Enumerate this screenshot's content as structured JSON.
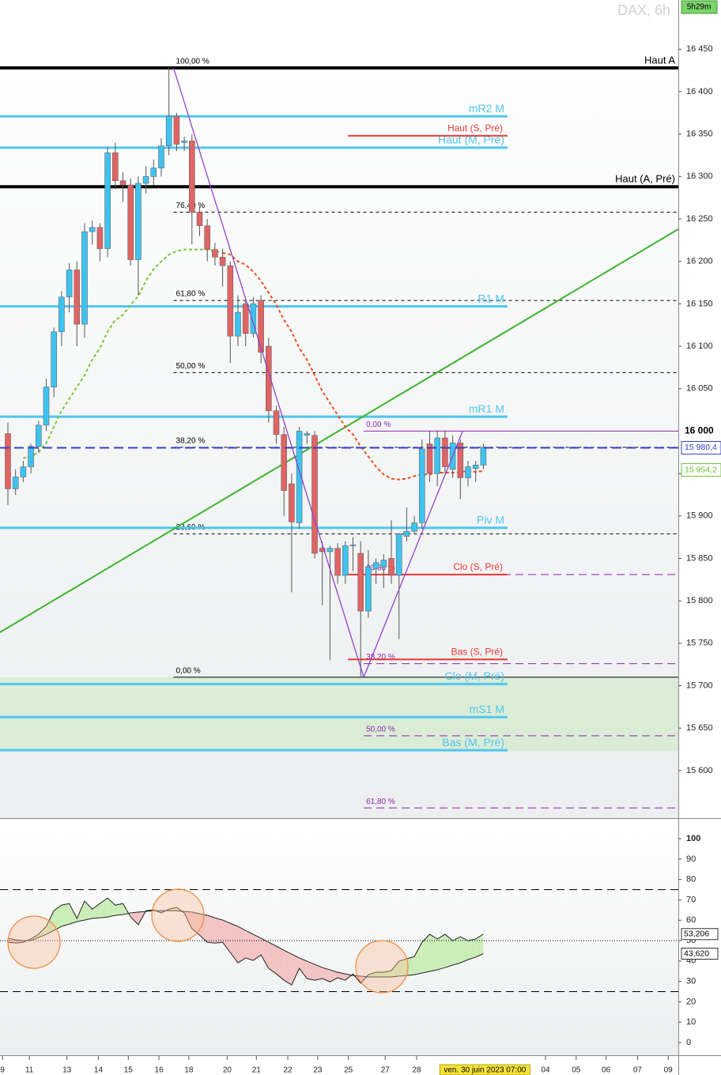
{
  "chart_data": [
    {
      "type": "candlestick",
      "title": "DAX, 6h",
      "countdown": "5h29m",
      "x": [
        0,
        1,
        2,
        3,
        4,
        5,
        6,
        7,
        8,
        9,
        10,
        11,
        12,
        13,
        14,
        15,
        16,
        17,
        18,
        19,
        20,
        21,
        22,
        23,
        24,
        25,
        26,
        27,
        28,
        29,
        30,
        31,
        32,
        33,
        34,
        35,
        36,
        37,
        38,
        39,
        40,
        41,
        42,
        43,
        44,
        45,
        46,
        47,
        48,
        49,
        50,
        51,
        52,
        53,
        54,
        55,
        56,
        57,
        58,
        59,
        60,
        61,
        62
      ],
      "open": [
        15997,
        15932,
        15946,
        15958,
        15982,
        16007,
        16052,
        16117,
        16158,
        16190,
        16126,
        16235,
        16240,
        16215,
        16328,
        16295,
        16290,
        16202,
        16292,
        16300,
        16310,
        16336,
        16371,
        16340,
        16342,
        16258,
        16242,
        16214,
        16205,
        16195,
        16112,
        16150,
        16115,
        16154,
        16100,
        16024,
        15996,
        15938,
        15892,
        15995,
        15995,
        15862,
        15858,
        15862,
        15830,
        15865,
        15856,
        15788,
        15838,
        15840,
        15850,
        15830,
        15876,
        15882,
        15892,
        15985,
        15950,
        15992,
        15955,
        15986,
        15945,
        15956,
        15960
      ],
      "high": [
        16010,
        15955,
        15965,
        15985,
        16012,
        16062,
        16122,
        16165,
        16198,
        16200,
        16245,
        16248,
        16245,
        16335,
        16340,
        16305,
        16298,
        16300,
        16312,
        16320,
        16345,
        16429,
        16375,
        16347,
        16350,
        16265,
        16250,
        16222,
        16215,
        16200,
        16160,
        16155,
        16158,
        16160,
        16110,
        16030,
        16005,
        15950,
        16005,
        16000,
        16000,
        15870,
        15865,
        15868,
        15870,
        15875,
        15870,
        15860,
        15850,
        15855,
        15895,
        15880,
        15910,
        15900,
        15990,
        16000,
        16000,
        16000,
        15995,
        15990,
        15965,
        15965,
        15985
      ],
      "low": [
        15913,
        15925,
        15940,
        15950,
        15975,
        16000,
        16040,
        16100,
        16140,
        16100,
        16110,
        16220,
        16200,
        16205,
        16285,
        16270,
        16195,
        16160,
        16280,
        16290,
        16300,
        16325,
        16330,
        16330,
        16220,
        16230,
        16200,
        16195,
        16170,
        16080,
        16100,
        16100,
        16110,
        16080,
        16010,
        15985,
        15900,
        15810,
        15885,
        15985,
        15850,
        15795,
        15730,
        15820,
        15820,
        15835,
        15710,
        15780,
        15820,
        15815,
        15820,
        15755,
        15870,
        15880,
        15885,
        15940,
        15935,
        15950,
        15945,
        15920,
        15935,
        15940,
        15955
      ],
      "close": [
        15932,
        15946,
        15958,
        15982,
        16007,
        16052,
        16117,
        16158,
        16190,
        16126,
        16235,
        16240,
        16215,
        16328,
        16295,
        16290,
        16202,
        16292,
        16300,
        16310,
        16336,
        16371,
        16338,
        16342,
        16258,
        16242,
        16214,
        16205,
        16195,
        16112,
        16140,
        16115,
        16150,
        16093,
        16024,
        15996,
        15930,
        15893,
        16000,
        15997,
        15856,
        15858,
        15862,
        15830,
        15865,
        15866,
        15788,
        15840,
        15845,
        15848,
        15830,
        15879,
        15882,
        15892,
        15979,
        15950,
        15992,
        15958,
        15986,
        15945,
        15958,
        15960,
        15981
      ],
      "up_color": "#3ec3f0",
      "down_color": "#e06464",
      "xlim": [
        -1.03,
        87.42
      ],
      "ylim": [
        15544,
        16508
      ],
      "yticks": [
        {
          "value": 16450,
          "label": "16 450"
        },
        {
          "value": 16400,
          "label": "16 400"
        },
        {
          "value": 16350,
          "label": "16 350"
        },
        {
          "value": 16300,
          "label": "16 300"
        },
        {
          "value": 16250,
          "label": "16 250"
        },
        {
          "value": 16200,
          "label": "16 200"
        },
        {
          "value": 16150,
          "label": "16 150"
        },
        {
          "value": 16100,
          "label": "16 100"
        },
        {
          "value": 16050,
          "label": "16 050"
        },
        {
          "value": 15950,
          "label": "15 950"
        },
        {
          "value": 15900,
          "label": "15 900"
        },
        {
          "value": 15850,
          "label": "15 850"
        },
        {
          "value": 15800,
          "label": "15 800"
        },
        {
          "value": 15750,
          "label": "15 750"
        },
        {
          "value": 15700,
          "label": "15 700"
        },
        {
          "value": 15650,
          "label": "15 650"
        },
        {
          "value": 15600,
          "label": "15 600"
        }
      ],
      "zone": [
        15623,
        15710
      ],
      "zone_color": "#d4ebcf",
      "major_levels": [
        {
          "label": "Haut A",
          "value": 16428,
          "color": "#000000"
        },
        {
          "label": "Haut (A, Pré)",
          "value": 16288,
          "color": "#000000"
        }
      ],
      "pivot_levels": [
        {
          "label": "mR2 M",
          "value": 16371,
          "color": "#4fc6f0"
        },
        {
          "label": "Haut (M, Pré)",
          "value": 16334,
          "color": "#4fc6f0"
        },
        {
          "label": "R1 M",
          "value": 16147,
          "color": "#4fc6f0"
        },
        {
          "label": "mR1 M",
          "value": 16017,
          "color": "#4fc6f0"
        },
        {
          "label": "Piv M",
          "value": 15886,
          "color": "#4fc6f0"
        },
        {
          "label": "Clo (M, Pré)",
          "value": 15702,
          "color": "#4fc6f0"
        },
        {
          "label": "mS1 M",
          "value": 15663,
          "color": "#4fc6f0"
        },
        {
          "label": "Bas (M, Pré)",
          "value": 15624,
          "color": "#4fc6f0"
        }
      ],
      "session_levels": [
        {
          "label": "Haut (S, Pré)",
          "value": 16348,
          "color": "#e53935"
        },
        {
          "label": "Clo (S, Pré)",
          "value": 15831,
          "color": "#e53935"
        },
        {
          "label": "Bas (S, Pré)",
          "value": 15731,
          "color": "#e53935"
        }
      ],
      "fib_main": {
        "x": 21.6,
        "color": "#000000",
        "levels": [
          {
            "label": "100,00 %",
            "value": 16428,
            "dashed": true
          },
          {
            "label": "76,40 %",
            "value": 16258,
            "dashed": true
          },
          {
            "label": "61,80 %",
            "value": 16154,
            "dashed": true
          },
          {
            "label": "50,00 %",
            "value": 16069,
            "dashed": true
          },
          {
            "label": "38,20 %",
            "value": 15981,
            "dashed": true
          },
          {
            "label": "23,60 %",
            "value": 15879,
            "dashed": true
          },
          {
            "label": "0,00 %",
            "value": 15710,
            "dashed": false
          }
        ]
      },
      "fib_second": {
        "x": 46.4,
        "color": "#8e24aa",
        "levels": [
          {
            "label": "0,00 %",
            "value": 16000,
            "dashed": false
          },
          {
            "label": "23,60 %",
            "value": 15831,
            "dashed": true
          },
          {
            "label": "38,20 %",
            "value": 15726,
            "dashed": true
          },
          {
            "label": "50,00 %",
            "value": 15641,
            "dashed": true
          },
          {
            "label": "61,80 %",
            "value": 15556,
            "dashed": true
          }
        ]
      },
      "trendline": {
        "x": [
          -1.03,
          87.42
        ],
        "y": [
          15763,
          16238
        ],
        "color": "#3cb52e"
      },
      "zigzag": {
        "x": [
          21.6,
          46.4,
          59.3
        ],
        "y": [
          16428,
          15710,
          16000
        ],
        "color": "#8e44c8"
      },
      "series": [
        {
          "color": "#7cc63a",
          "x": [
            2,
            3,
            4,
            5,
            6,
            7,
            8,
            9,
            10,
            11,
            12,
            13,
            14,
            15,
            16,
            17,
            18,
            19,
            20,
            21,
            22,
            23,
            24,
            25,
            26,
            27,
            28
          ],
          "values": [
            15968,
            15970,
            15975,
            15986,
            16005,
            16024,
            16038,
            16052,
            16066,
            16084,
            16098,
            16117,
            16131,
            16137,
            16149,
            16159,
            16177,
            16191,
            16200,
            16208,
            16212,
            16214,
            16214,
            16214,
            16214,
            16212,
            16210
          ]
        },
        {
          "color": "#f0521e",
          "x": [
            28,
            29,
            30,
            31,
            32,
            33,
            34,
            35,
            36,
            37,
            38,
            39,
            40,
            41,
            42,
            43,
            44,
            45,
            46,
            47,
            48,
            49,
            50,
            51,
            52,
            53,
            54,
            55,
            56,
            57,
            58,
            59,
            60,
            61,
            62
          ],
          "values": [
            16210,
            16208,
            16200,
            16196,
            16188,
            16177,
            16163,
            16149,
            16131,
            16117,
            16098,
            16084,
            16066,
            16047,
            16033,
            16019,
            16005,
            15996,
            15982,
            15970,
            15958,
            15949,
            15944,
            15943,
            15944,
            15947,
            15949,
            15949,
            15951,
            15951,
            15951,
            15952,
            15953,
            15952,
            15953
          ]
        }
      ],
      "price_markers": [
        {
          "label": "16 000",
          "value": 16000,
          "color": "#000000",
          "dashed_line": false
        },
        {
          "label": "15 980,4",
          "value": 15980.4,
          "color": "#3340c8",
          "dashed_line": true
        },
        {
          "label": "15 954,2",
          "value": 15954.2,
          "color": "#6cc23a",
          "dashed_line": false
        }
      ]
    },
    {
      "type": "line",
      "x": [
        0,
        1,
        2,
        3,
        4,
        5,
        6,
        7,
        8,
        9,
        10,
        11,
        12,
        13,
        14,
        15,
        16,
        17,
        18,
        19,
        20,
        21,
        22,
        23,
        24,
        25,
        26,
        27,
        28,
        29,
        30,
        31,
        32,
        33,
        34,
        35,
        36,
        37,
        38,
        39,
        40,
        41,
        42,
        43,
        44,
        45,
        46,
        47,
        48,
        49,
        50,
        51,
        52,
        53,
        54,
        55,
        56,
        57,
        58,
        59,
        60,
        61,
        62
      ],
      "series": [
        {
          "color": "#222222",
          "values": [
            49.2,
            48.8,
            49.2,
            50.8,
            53.1,
            57,
            64.7,
            67.4,
            68.2,
            60.9,
            69.4,
            65.5,
            68.2,
            70.9,
            67.4,
            68.2,
            61.6,
            57.8,
            64.7,
            65.1,
            63.6,
            65.5,
            66.3,
            63.6,
            55.8,
            52.7,
            49.2,
            48.8,
            49.2,
            44.2,
            39.1,
            41.5,
            40.3,
            43,
            36.4,
            33.7,
            30.6,
            28.3,
            36.4,
            31.4,
            30.6,
            31.4,
            29.8,
            31.8,
            30.6,
            33.7,
            29.1,
            33.3,
            34.5,
            34.5,
            35.3,
            39.9,
            41.1,
            42.2,
            49.2,
            53.1,
            50.8,
            53.1,
            50,
            51.9,
            50,
            50.8,
            53.206
          ]
        },
        {
          "color": "#222222",
          "values": [
            51.2,
            50.4,
            50,
            50,
            51.6,
            53.1,
            55,
            57,
            58.1,
            59.3,
            60.1,
            60.9,
            61.2,
            61.6,
            62.4,
            62.8,
            63.6,
            64,
            64.3,
            64.7,
            64.7,
            64.7,
            64.7,
            64.3,
            64,
            63.2,
            62.4,
            61.2,
            60.1,
            58.5,
            57,
            55,
            53.1,
            51.2,
            49.2,
            47.3,
            45.3,
            43.4,
            41.5,
            39.9,
            38.4,
            36.8,
            35.7,
            34.5,
            33.7,
            32.9,
            32.6,
            32.2,
            32.2,
            32.2,
            32.2,
            32.6,
            32.9,
            33.3,
            34.1,
            34.9,
            35.7,
            36.8,
            38,
            39.1,
            40.7,
            41.9,
            43.62
          ]
        }
      ],
      "fill_up_color": "#cbeeb8",
      "fill_down_color": "#f2c4c4",
      "xlim": [
        -1.03,
        87.42
      ],
      "ylim": [
        -6.2,
        110.1
      ],
      "yticks": [
        0,
        10,
        20,
        30,
        40,
        50,
        60,
        70,
        80,
        90,
        100
      ],
      "dashed_levels": [
        75,
        25
      ],
      "dotted_levels": [
        50
      ],
      "markers": [
        {
          "label": "53,206",
          "value": 53.206
        },
        {
          "label": "43,620",
          "value": 43.62
        }
      ],
      "xticks": [
        {
          "value": -0.7,
          "label": "9"
        },
        {
          "value": 2.8,
          "label": "11"
        },
        {
          "value": 7.7,
          "label": "13"
        },
        {
          "value": 11.8,
          "label": "14"
        },
        {
          "value": 15.7,
          "label": "15"
        },
        {
          "value": 19.7,
          "label": "16"
        },
        {
          "value": 23.6,
          "label": "18"
        },
        {
          "value": 28.6,
          "label": "20"
        },
        {
          "value": 32.4,
          "label": "21"
        },
        {
          "value": 36.5,
          "label": "22"
        },
        {
          "value": 40.4,
          "label": "23"
        },
        {
          "value": 44.4,
          "label": "25"
        },
        {
          "value": 49.2,
          "label": "27"
        },
        {
          "value": 53.3,
          "label": "28"
        },
        {
          "value": 70.1,
          "label": "04"
        },
        {
          "value": 74.1,
          "label": "05"
        },
        {
          "value": 78,
          "label": "06"
        },
        {
          "value": 82.1,
          "label": "07"
        },
        {
          "value": 86.1,
          "label": "09"
        }
      ],
      "cursor": {
        "value": 62.2,
        "label": "ven. 30 juin 2023 07:00"
      }
    }
  ]
}
